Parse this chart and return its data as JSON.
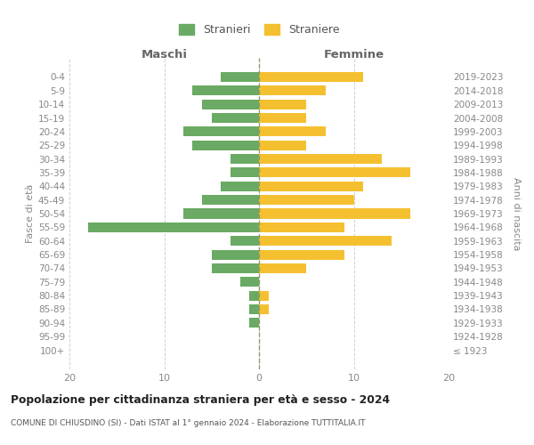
{
  "age_groups": [
    "100+",
    "95-99",
    "90-94",
    "85-89",
    "80-84",
    "75-79",
    "70-74",
    "65-69",
    "60-64",
    "55-59",
    "50-54",
    "45-49",
    "40-44",
    "35-39",
    "30-34",
    "25-29",
    "20-24",
    "15-19",
    "10-14",
    "5-9",
    "0-4"
  ],
  "birth_years": [
    "≤ 1923",
    "1924-1928",
    "1929-1933",
    "1934-1938",
    "1939-1943",
    "1944-1948",
    "1949-1953",
    "1954-1958",
    "1959-1963",
    "1964-1968",
    "1969-1973",
    "1974-1978",
    "1979-1983",
    "1984-1988",
    "1989-1993",
    "1994-1998",
    "1999-2003",
    "2004-2008",
    "2009-2013",
    "2014-2018",
    "2019-2023"
  ],
  "maschi": [
    0,
    0,
    1,
    1,
    1,
    2,
    5,
    5,
    3,
    18,
    8,
    6,
    4,
    3,
    3,
    7,
    8,
    5,
    6,
    7,
    4
  ],
  "femmine": [
    0,
    0,
    0,
    1,
    1,
    0,
    5,
    9,
    14,
    9,
    16,
    10,
    11,
    16,
    13,
    5,
    7,
    5,
    5,
    7,
    11
  ],
  "maschi_color": "#6aaa64",
  "femmine_color": "#f5c030",
  "title": "Popolazione per cittadinanza straniera per età e sesso - 2024",
  "subtitle": "COMUNE DI CHIUSDINO (SI) - Dati ISTAT al 1° gennaio 2024 - Elaborazione TUTTITALIA.IT",
  "xlabel_left": "Maschi",
  "xlabel_right": "Femmine",
  "ylabel_left": "Fasce di età",
  "ylabel_right": "Anni di nascita",
  "xlim": 20,
  "legend_stranieri": "Stranieri",
  "legend_straniere": "Straniere",
  "bg_color": "#ffffff",
  "grid_color": "#d0d0d0",
  "bar_height": 0.72
}
